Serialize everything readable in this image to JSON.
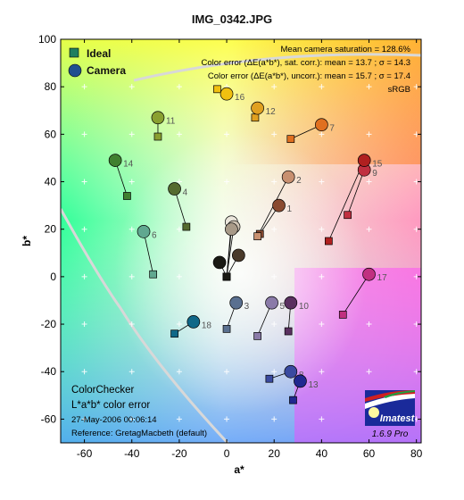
{
  "title": "IMG_0342.JPG",
  "stats": {
    "line1": "Mean camera saturation = 128.6%",
    "line2": "Color error (ΔE(a*b*), sat. corr.):  mean = 13.7 ;  σ = 14.3",
    "line3": "Color error (ΔE(a*b*), uncorr.):  mean = 15.7 ;  σ = 17.4",
    "line4": "sRGB"
  },
  "legend": {
    "ideal": "Ideal",
    "camera": "Camera"
  },
  "footer": {
    "line1": "ColorChecker",
    "line2": "L*a*b* color error",
    "line3": "27-May-2006 00:06:14",
    "line4": "Reference: GretagMacbeth (default)"
  },
  "logo": {
    "brand": "Imatest",
    "version": "1.6.9  Pro"
  },
  "chart_data": {
    "type": "scatter",
    "xlabel": "a*",
    "ylabel": "b*",
    "xlim": [
      -70,
      82
    ],
    "ylim": [
      -70,
      100
    ],
    "xticks": [
      -60,
      -40,
      -20,
      0,
      20,
      40,
      60,
      80
    ],
    "yticks": [
      -60,
      -40,
      -20,
      0,
      20,
      40,
      60,
      80,
      100
    ],
    "grid": "plus markers",
    "legend_position": "top-left",
    "pairs": [
      {
        "id": 1,
        "ideal": [
          14,
          18
        ],
        "camera": [
          22,
          30
        ],
        "color": "#8a4a30"
      },
      {
        "id": 2,
        "ideal": [
          13,
          17
        ],
        "camera": [
          26,
          42
        ],
        "color": "#c89070"
      },
      {
        "id": 3,
        "ideal": [
          0,
          -22
        ],
        "camera": [
          4,
          -11
        ],
        "color": "#5a7090"
      },
      {
        "id": 4,
        "ideal": [
          -17,
          21
        ],
        "camera": [
          -22,
          37
        ],
        "color": "#556b2f"
      },
      {
        "id": 5,
        "ideal": [
          13,
          -25
        ],
        "camera": [
          19,
          -11
        ],
        "color": "#8a7aa8"
      },
      {
        "id": 6,
        "ideal": [
          -31,
          1
        ],
        "camera": [
          -35,
          19
        ],
        "color": "#60a890"
      },
      {
        "id": 7,
        "ideal": [
          27,
          58
        ],
        "camera": [
          40,
          64
        ],
        "color": "#e07020"
      },
      {
        "id": 8,
        "ideal": [
          18,
          -43
        ],
        "camera": [
          27,
          -40
        ],
        "color": "#3a4aa0"
      },
      {
        "id": 9,
        "ideal": [
          51,
          26
        ],
        "camera": [
          58,
          45
        ],
        "color": "#c03040"
      },
      {
        "id": 10,
        "ideal": [
          26,
          -23
        ],
        "camera": [
          27,
          -11
        ],
        "color": "#5a3060"
      },
      {
        "id": 11,
        "ideal": [
          -29,
          59
        ],
        "camera": [
          -29,
          67
        ],
        "color": "#8aa030"
      },
      {
        "id": 12,
        "ideal": [
          12,
          67
        ],
        "camera": [
          13,
          71
        ],
        "color": "#e0a020"
      },
      {
        "id": 13,
        "ideal": [
          28,
          -52
        ],
        "camera": [
          31,
          -44
        ],
        "color": "#202890"
      },
      {
        "id": 14,
        "ideal": [
          -42,
          34
        ],
        "camera": [
          -47,
          49
        ],
        "color": "#408030"
      },
      {
        "id": 15,
        "ideal": [
          43,
          15
        ],
        "camera": [
          58,
          49
        ],
        "color": "#b02020"
      },
      {
        "id": 16,
        "ideal": [
          -4,
          79
        ],
        "camera": [
          0,
          77
        ],
        "color": "#f0c010"
      },
      {
        "id": 17,
        "ideal": [
          49,
          -16
        ],
        "camera": [
          60,
          1
        ],
        "color": "#c03080"
      },
      {
        "id": 18,
        "ideal": [
          -22,
          -24
        ],
        "camera": [
          -14,
          -19
        ],
        "color": "#106888"
      },
      {
        "id": 19,
        "ideal": [
          0,
          0
        ],
        "camera": [
          2,
          23
        ],
        "color": "#ebe6dc"
      },
      {
        "id": 20,
        "ideal": [
          0,
          0
        ],
        "camera": [
          3,
          21
        ],
        "color": "#cfc4b4"
      },
      {
        "id": 21,
        "ideal": [
          0,
          0
        ],
        "camera": [
          2,
          20
        ],
        "color": "#a89a88"
      },
      {
        "id": 22,
        "ideal": [
          0,
          0
        ],
        "camera": [
          5,
          9
        ],
        "color": "#4a3a2a"
      },
      {
        "id": 23,
        "ideal": [
          0,
          0
        ],
        "camera": [
          -3,
          6
        ],
        "color": "#1a1a14"
      }
    ],
    "labeled_ids": [
      1,
      2,
      3,
      4,
      5,
      6,
      7,
      8,
      9,
      10,
      11,
      12,
      13,
      14,
      15,
      16,
      17,
      18
    ]
  }
}
